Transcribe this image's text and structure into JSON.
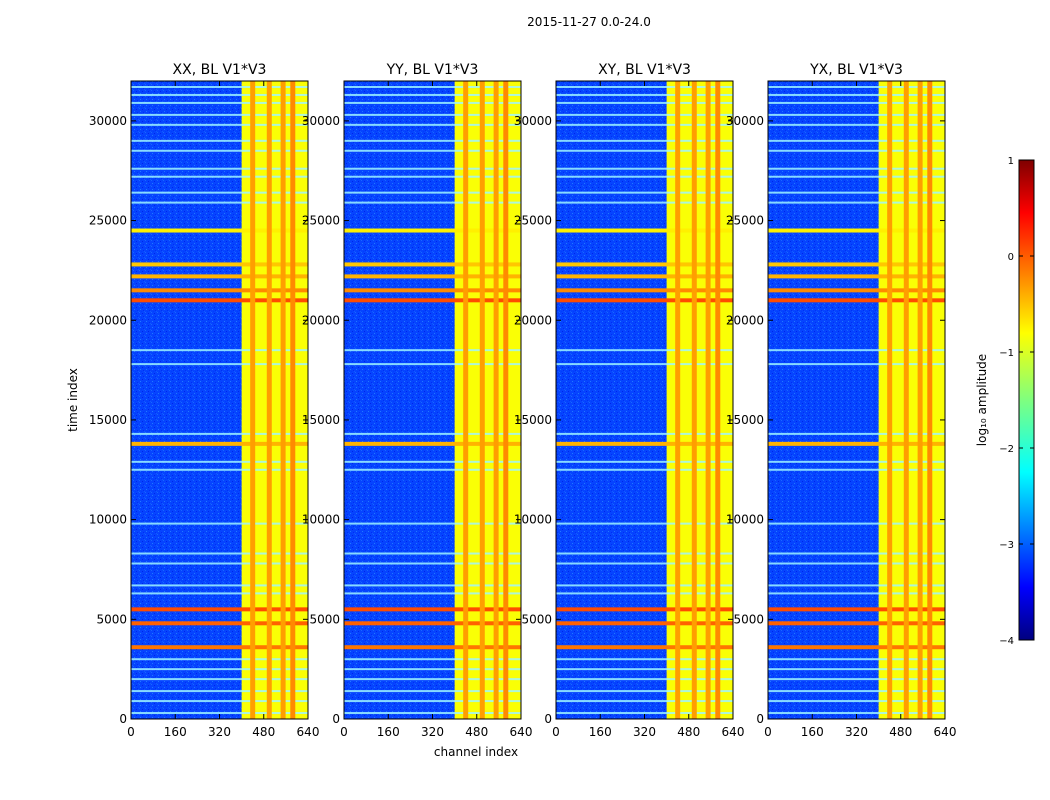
{
  "figure": {
    "suptitle": "2015-11-27 0.0-24.0",
    "ylabel": "time index",
    "xlabel": "channel index"
  },
  "chart_data": {
    "type": "heatmap",
    "colormap": "jet",
    "x_range": [
      0,
      640
    ],
    "y_range": [
      0,
      32000
    ],
    "x_ticks": [
      0,
      160,
      320,
      480,
      640
    ],
    "y_ticks": [
      0,
      5000,
      10000,
      15000,
      20000,
      25000,
      30000
    ],
    "panels": [
      {
        "title": "XX, BL V1*V3"
      },
      {
        "title": "YY, BL V1*V3"
      },
      {
        "title": "XY, BL V1*V3"
      },
      {
        "title": "YX, BL V1*V3"
      }
    ],
    "background_value": -3.0,
    "rfi_band": {
      "x_start": 400,
      "x_end": 640,
      "value": -0.9
    },
    "rfi_lines": [
      {
        "x": 440,
        "value": -0.4
      },
      {
        "x": 500,
        "value": -0.4
      },
      {
        "x": 550,
        "value": -0.4
      },
      {
        "x": 585,
        "value": -0.3
      }
    ],
    "rfi_strong_rows": [
      {
        "t": 3600,
        "value": -0.2
      },
      {
        "t": 4800,
        "value": -0.1
      },
      {
        "t": 5500,
        "value": 0.0
      },
      {
        "t": 13800,
        "value": -0.5
      },
      {
        "t": 21000,
        "value": 0.0
      },
      {
        "t": 21500,
        "value": -0.3
      },
      {
        "t": 22200,
        "value": -0.5
      },
      {
        "t": 22800,
        "value": -0.6
      },
      {
        "t": 24500,
        "value": -0.8
      }
    ],
    "rfi_faint_rows": [
      300,
      900,
      1400,
      2000,
      2500,
      3000,
      6300,
      6700,
      7800,
      8300,
      9800,
      12500,
      12900,
      14300,
      17800,
      18500,
      25900,
      26400,
      27200,
      27600,
      28500,
      29000,
      29800,
      30300,
      30900,
      31300,
      31700
    ],
    "colorbar": {
      "label": "log₁₀ amplitude",
      "range": [
        -4,
        1
      ],
      "ticks": [
        1,
        0,
        -1,
        -2,
        -3,
        -4
      ],
      "tick_labels": [
        "1",
        "0",
        "−1",
        "−2",
        "−3",
        "−4"
      ]
    }
  }
}
